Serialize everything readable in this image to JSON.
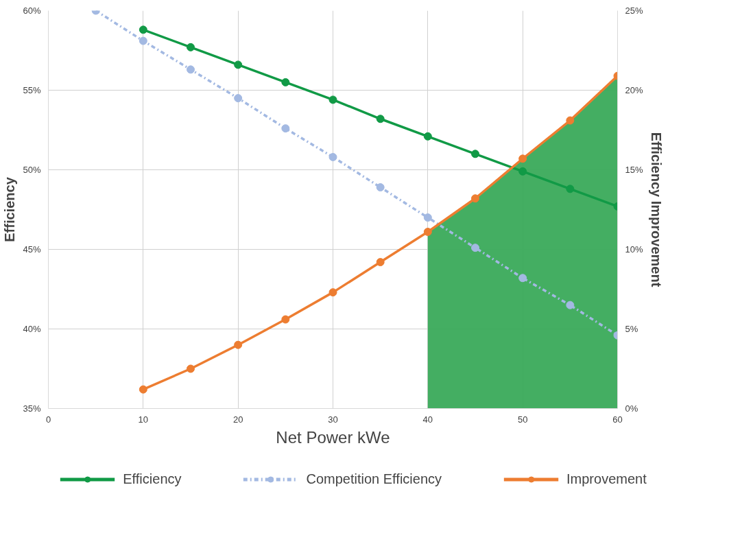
{
  "chart_data": {
    "type": "line",
    "xlabel": "Net Power kWe",
    "ylabel": "Efficiency",
    "y2label": "Efficiency Improvement",
    "xlim": [
      0,
      60
    ],
    "xticks": [
      0,
      10,
      20,
      30,
      40,
      50,
      60
    ],
    "ylim": [
      35,
      60
    ],
    "yticks": [
      {
        "value": 35,
        "label": "35%"
      },
      {
        "value": 40,
        "label": "40%"
      },
      {
        "value": 45,
        "label": "45%"
      },
      {
        "value": 50,
        "label": "50%"
      },
      {
        "value": 55,
        "label": "55%"
      },
      {
        "value": 60,
        "label": "60%"
      }
    ],
    "y2lim": [
      0,
      25
    ],
    "y2ticks": [
      {
        "value": 0,
        "label": "0%"
      },
      {
        "value": 5,
        "label": "5%"
      },
      {
        "value": 10,
        "label": "10%"
      },
      {
        "value": 15,
        "label": "15%"
      },
      {
        "value": 20,
        "label": "20%"
      },
      {
        "value": 25,
        "label": "25%"
      }
    ],
    "grid": true,
    "legend": "bottom",
    "series": [
      {
        "type": "area",
        "axis": "y2",
        "color": "#3aaa5a",
        "x": [
          40,
          45,
          50,
          55,
          60
        ],
        "values": [
          11.1,
          13.2,
          15.7,
          18.1,
          20.9
        ]
      },
      {
        "name": "Efficiency",
        "color": "#119a46",
        "marker": "circle",
        "line_style": "solid",
        "x": [
          10,
          15,
          20,
          25,
          30,
          35,
          40,
          45,
          50,
          55,
          60
        ],
        "values": [
          58.8,
          57.7,
          56.6,
          55.5,
          54.4,
          53.2,
          52.1,
          51.0,
          49.9,
          48.8,
          47.7
        ]
      },
      {
        "name": "Competition Efficiency",
        "color": "#a3b9e2",
        "marker": "circle",
        "line_style": "dashed",
        "x": [
          5,
          10,
          15,
          20,
          25,
          30,
          35,
          40,
          45,
          50,
          55,
          60
        ],
        "values": [
          60,
          58.1,
          56.3,
          54.5,
          52.6,
          50.8,
          48.9,
          47.0,
          45.1,
          43.2,
          41.5,
          39.6
        ]
      },
      {
        "name": "Improvement",
        "color": "#ed7d31",
        "marker": "circle",
        "line_style": "solid",
        "axis": "y2",
        "x": [
          10,
          15,
          20,
          25,
          30,
          35,
          40,
          45,
          50,
          55,
          60
        ],
        "values": [
          1.2,
          2.5,
          4.0,
          5.6,
          7.3,
          9.2,
          11.1,
          13.2,
          15.7,
          18.1,
          20.9
        ]
      }
    ]
  }
}
